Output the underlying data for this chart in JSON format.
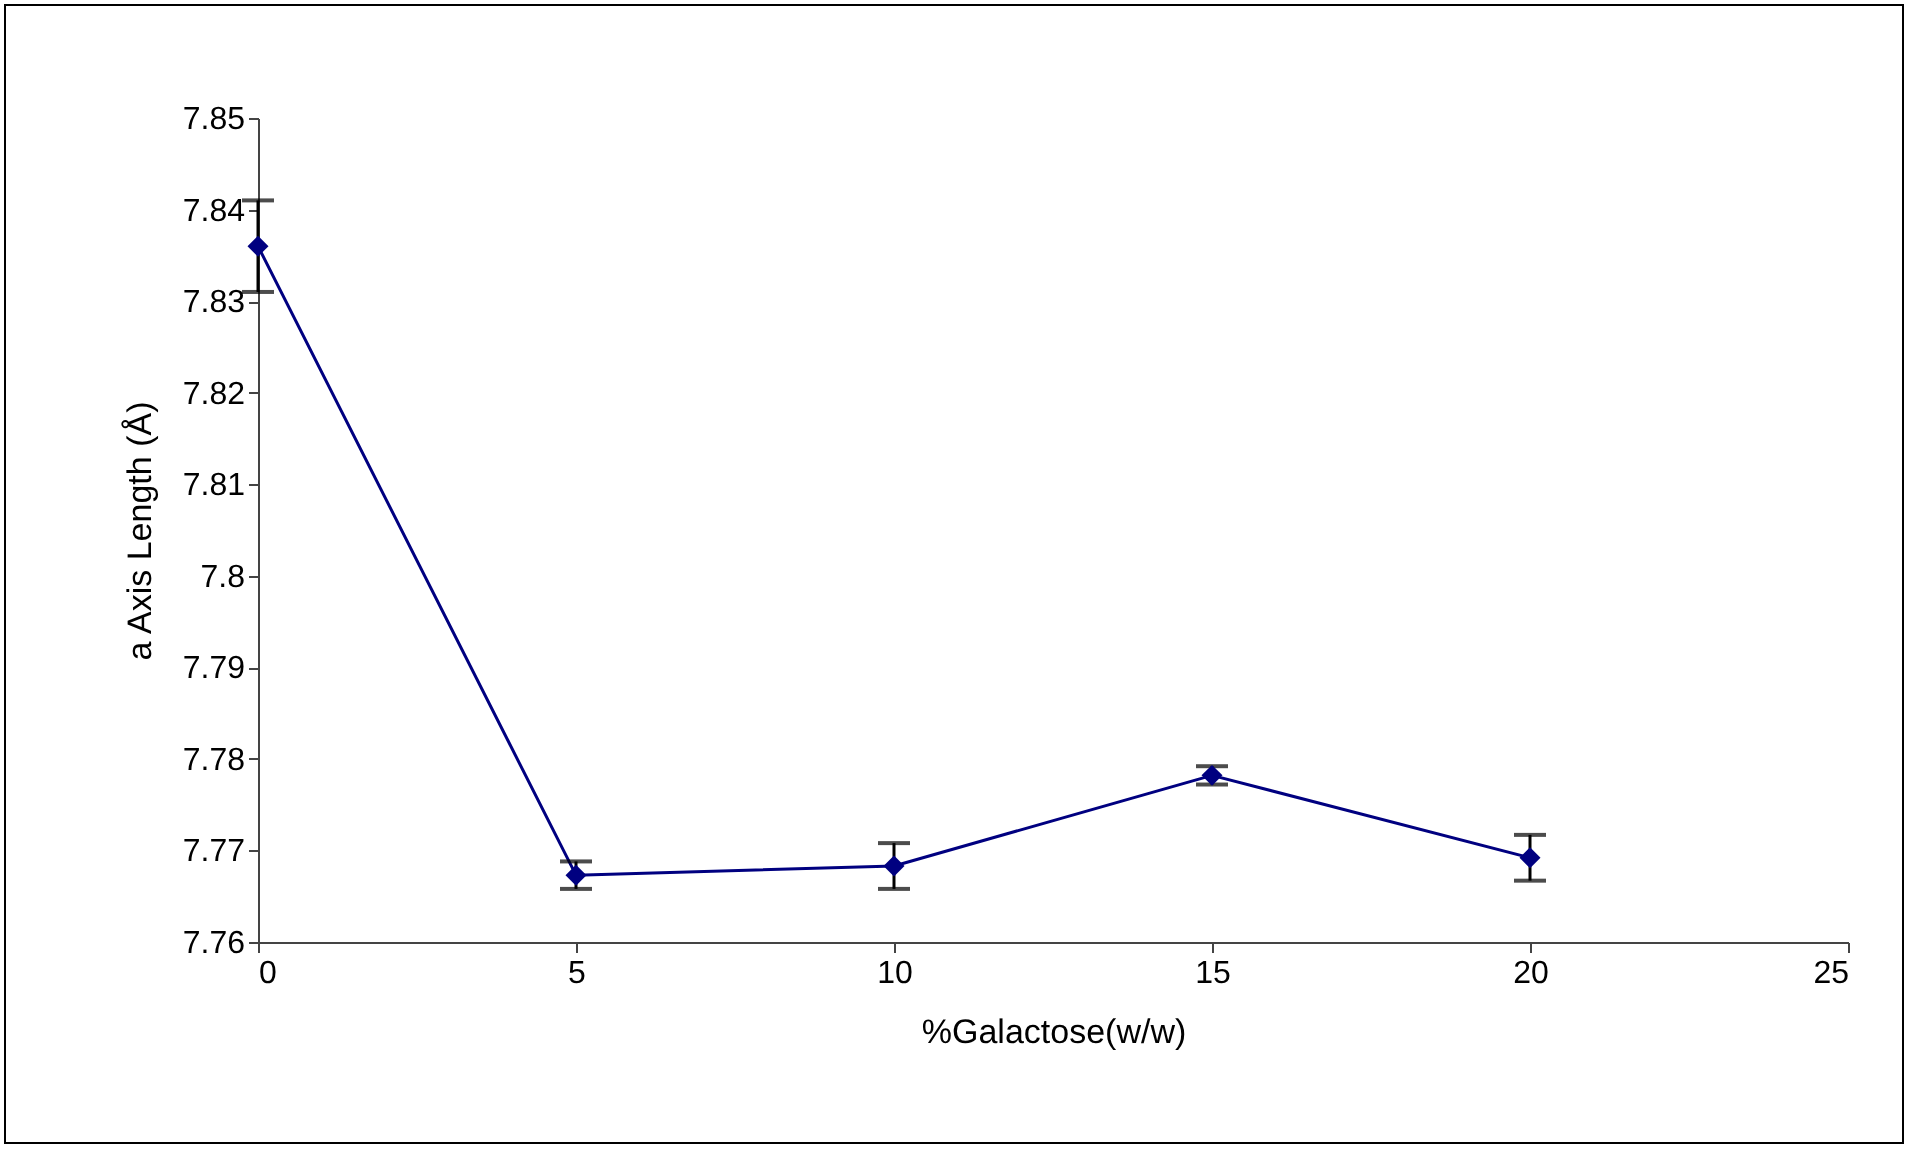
{
  "chart_data": {
    "type": "line",
    "xlabel": "%Galactose(w/w)",
    "ylabel": "a Axis Length (Å)",
    "x": [
      0,
      5,
      10,
      15,
      20
    ],
    "series": [
      {
        "color": "#000080",
        "values": [
          7.836,
          7.7673,
          7.7683,
          7.7782,
          7.7692
        ],
        "errors": [
          0.005,
          0.0015,
          0.0025,
          0.001,
          0.0025
        ]
      }
    ],
    "xlim": [
      0,
      25
    ],
    "xticks": [
      0,
      5,
      10,
      15,
      20,
      25
    ],
    "ylim": [
      7.76,
      7.85
    ],
    "yticks": [
      7.76,
      7.77,
      7.78,
      7.79,
      7.8,
      7.81,
      7.82,
      7.83,
      7.84,
      7.85
    ],
    "grid": false,
    "marker": "diamond",
    "line_style": "solid"
  }
}
